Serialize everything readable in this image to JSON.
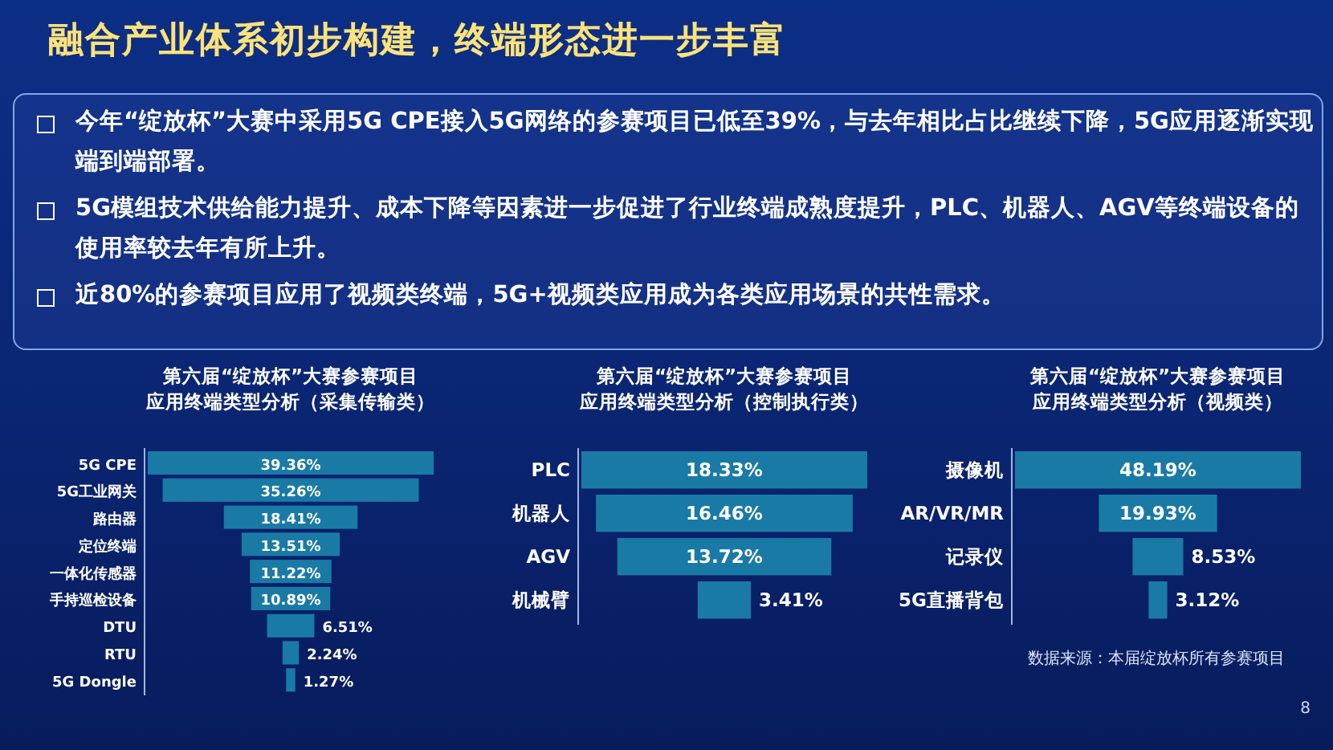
{
  "chart_data": [
    {
      "type": "other",
      "title": "融合产业体系初步构建，终端形态进一步丰富",
      "annotations": [
        "今年“绽放杯”大赛中采用5G CPE接入5G网络的参赛项目已低至39%，与去年相比占比继续下降，5G应用逐渐实现端到端部署。",
        "5G模组技术供给能力提升、成本下降等因素进一步促进了行业终端成熟度提升，PLC、机器人、AGV等终端设备的使用率较去年有所上升。",
        "近80%的参赛项目应用了视频类终端，5G+视频类应用成为各类应用场景的共性需求。",
        "8"
      ]
    },
    {
      "type": "other",
      "title": "第六届“绽放杯”大赛参赛项目",
      "subtitle": "应用终端类型分析（采集传输类）",
      "categories": [
        "5G CPE",
        "5G工业网关",
        "路由器",
        "定位终端",
        "一体化传感器",
        "手持巡检设备",
        "DTU",
        "RTU",
        "5G Dongle"
      ],
      "values": [
        39.36,
        35.26,
        18.41,
        13.51,
        11.22,
        10.89,
        6.51,
        2.24,
        1.27
      ],
      "value_labels": [
        "39.36%",
        "35.26%",
        "18.41%",
        "13.51%",
        "11.22%",
        "10.89%",
        "6.51%",
        "2.24%",
        "1.27%"
      ],
      "color": "#1a7aa6"
    },
    {
      "type": "other",
      "title": "第六届“绽放杯”大赛参赛项目",
      "subtitle": "应用终端类型分析（控制执行类）",
      "categories": [
        "PLC",
        "机器人",
        "AGV",
        "机械臂"
      ],
      "values": [
        18.33,
        16.46,
        13.72,
        3.41
      ],
      "value_labels": [
        "18.33%",
        "16.46%",
        "13.72%",
        "3.41%"
      ],
      "color": "#1a7aa6"
    },
    {
      "type": "other",
      "title": "第六届“绽放杯”大赛参赛项目",
      "subtitle": "应用终端类型分析（视频类）",
      "categories": [
        "摄像机",
        "AR/VR/MR",
        "记录仪",
        "5G直播背包"
      ],
      "values": [
        48.19,
        19.93,
        8.53,
        3.12
      ],
      "value_labels": [
        "48.19%",
        "19.93%",
        "8.53%",
        "3.12%"
      ],
      "color": "#1a7aa6",
      "annotations": [
        "数据来源：本届绽放杯所有参赛项目"
      ]
    }
  ]
}
